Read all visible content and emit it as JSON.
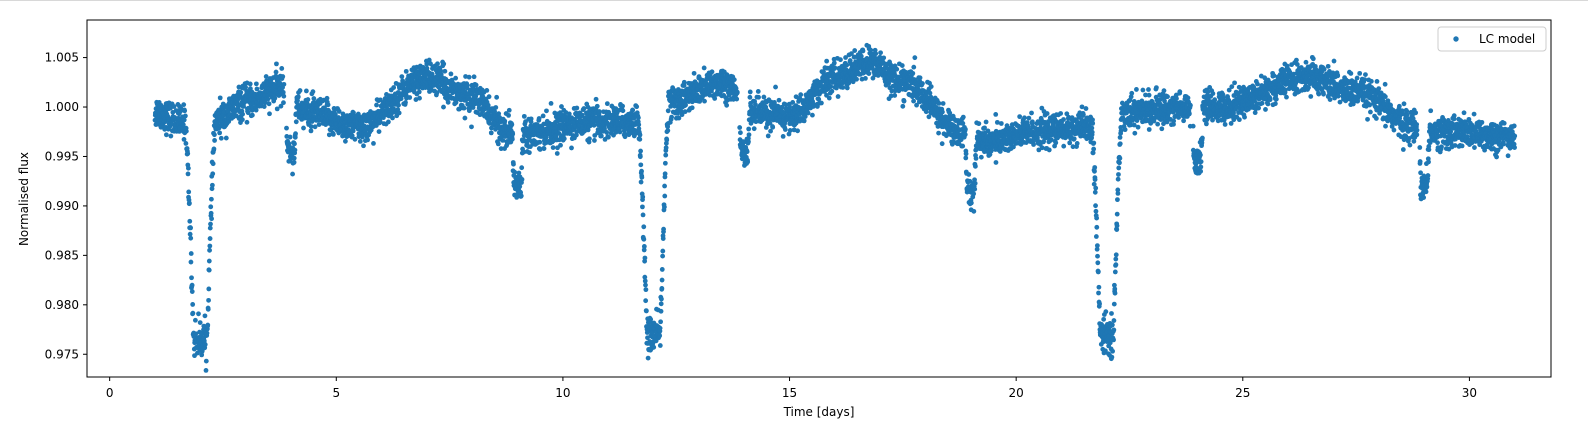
{
  "chart_data": {
    "type": "scatter",
    "title": "",
    "xlabel": "Time [days]",
    "ylabel": "Normalised flux",
    "xlim": [
      -0.5,
      31.8
    ],
    "ylim": [
      0.9727,
      1.0088
    ],
    "xticks": [
      0,
      5,
      10,
      15,
      20,
      25,
      30
    ],
    "xtick_labels": [
      "0",
      "5",
      "10",
      "15",
      "20",
      "25",
      "30"
    ],
    "yticks": [
      0.975,
      0.98,
      0.985,
      0.99,
      0.995,
      1.0,
      1.005
    ],
    "ytick_labels": [
      "0.975",
      "0.980",
      "0.985",
      "0.990",
      "0.995",
      "1.000",
      "1.005"
    ],
    "grid": false,
    "legend": {
      "position": "top-right",
      "entries": [
        "LC model"
      ]
    },
    "series": [
      {
        "name": "LC model",
        "color": "#1f77b4",
        "marker": "circle",
        "time_range": [
          1.0,
          31.0
        ],
        "baseline_flux": [
          [
            1.0,
            0.9995
          ],
          [
            1.6,
            0.9985
          ],
          [
            2.3,
            0.9985
          ],
          [
            3.0,
            1.0005
          ],
          [
            3.8,
            1.002
          ],
          [
            4.3,
            0.9995
          ],
          [
            5.5,
            0.998
          ],
          [
            7.0,
            1.003
          ],
          [
            8.0,
            1.001
          ],
          [
            8.8,
            0.9975
          ],
          [
            9.5,
            0.9975
          ],
          [
            10.5,
            0.9985
          ],
          [
            11.7,
            0.9985
          ],
          [
            12.4,
            1.0005
          ],
          [
            13.5,
            1.0025
          ],
          [
            14.2,
            0.9995
          ],
          [
            15.0,
            0.999
          ],
          [
            16.0,
            1.003
          ],
          [
            16.8,
            1.0045
          ],
          [
            17.5,
            1.0025
          ],
          [
            18.8,
            0.9975
          ],
          [
            19.3,
            0.9965
          ],
          [
            20.5,
            0.9975
          ],
          [
            21.7,
            0.998
          ],
          [
            22.3,
            0.9995
          ],
          [
            23.8,
            1.0
          ],
          [
            24.4,
            1.0
          ],
          [
            26.5,
            1.003
          ],
          [
            27.5,
            1.0015
          ],
          [
            28.8,
            0.998
          ],
          [
            29.3,
            0.9975
          ],
          [
            31.0,
            0.997
          ]
        ],
        "primary_eclipses": [
          {
            "center": 2.0,
            "depth": 0.9765,
            "half_width": 0.33
          },
          {
            "center": 12.0,
            "depth": 0.977,
            "half_width": 0.33
          },
          {
            "center": 22.0,
            "depth": 0.977,
            "half_width": 0.33
          }
        ],
        "secondary_eclipses": [
          {
            "center": 4.0,
            "depth": 0.9955,
            "half_width": 0.12
          },
          {
            "center": 9.0,
            "depth": 0.992,
            "half_width": 0.12
          },
          {
            "center": 14.0,
            "depth": 0.9955,
            "half_width": 0.12
          },
          {
            "center": 19.0,
            "depth": 0.9915,
            "half_width": 0.12
          },
          {
            "center": 24.0,
            "depth": 0.9945,
            "half_width": 0.12
          },
          {
            "center": 29.0,
            "depth": 0.992,
            "half_width": 0.12
          }
        ],
        "gaps": [
          [
            3.85,
            3.9
          ],
          [
            13.85,
            13.9
          ],
          [
            23.85,
            23.9
          ],
          [
            28.85,
            28.9
          ]
        ],
        "scatter": 0.0008
      }
    ]
  }
}
